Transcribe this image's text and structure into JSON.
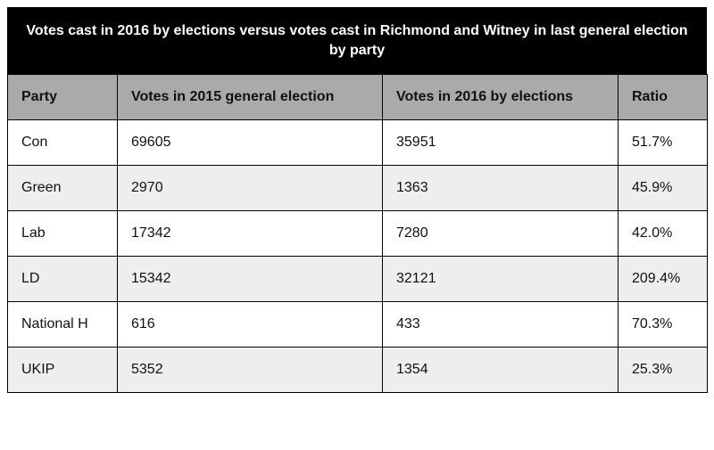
{
  "chart_data": {
    "type": "table",
    "title": "Votes cast in 2016 by elections versus votes cast in Richmond and Witney in last general election by party",
    "columns": [
      "Party",
      "Votes in 2015 general election",
      "Votes in 2016 by elections",
      "Ratio"
    ],
    "rows": [
      [
        "Con",
        "69605",
        "35951",
        "51.7%"
      ],
      [
        "Green",
        "2970",
        "1363",
        "45.9%"
      ],
      [
        "Lab",
        "17342",
        "7280",
        "42.0%"
      ],
      [
        "LD",
        "15342",
        "32121",
        "209.4%"
      ],
      [
        "National H",
        "616",
        "433",
        "70.3%"
      ],
      [
        "UKIP",
        "5352",
        "1354",
        "25.3%"
      ]
    ]
  },
  "colors": {
    "title_background": "#000000",
    "title_text": "#ffffff",
    "header_background": "#aaaaaa",
    "row_odd": "#ffffff",
    "row_even": "#eeeeee",
    "border": "#000000"
  }
}
